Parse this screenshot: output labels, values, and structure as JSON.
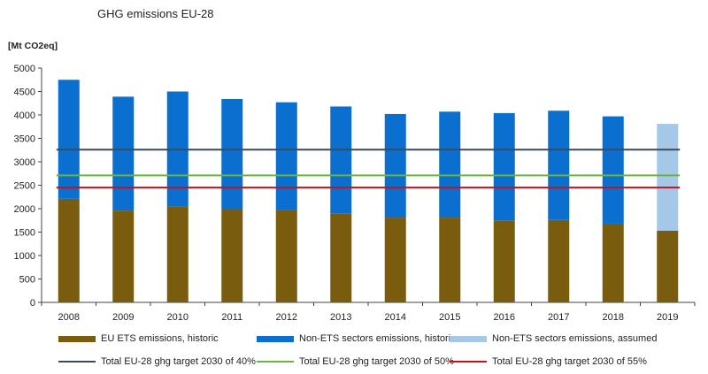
{
  "chart_data": {
    "type": "bar",
    "title": "GHG emissions EU-28",
    "ylabel": "[Mt CO2eq]",
    "xlabel": "",
    "ylim": [
      0,
      5000
    ],
    "y_ticks": [
      0,
      500,
      1000,
      1500,
      2000,
      2500,
      3000,
      3500,
      4000,
      4500,
      5000
    ],
    "categories": [
      "2008",
      "2009",
      "2010",
      "2011",
      "2012",
      "2013",
      "2014",
      "2015",
      "2016",
      "2017",
      "2018",
      "2019"
    ],
    "stacked": true,
    "grid": false,
    "legend_position": "bottom",
    "series": [
      {
        "name": "EU ETS emissions, historic",
        "color": "#7a5c0f",
        "values": [
          2210,
          1960,
          2040,
          1990,
          1970,
          1900,
          1810,
          1810,
          1750,
          1760,
          1680,
          1530
        ]
      },
      {
        "name": "Non-ETS sectors emissions, historic",
        "color": "#0a6fce",
        "values": [
          2540,
          2430,
          2460,
          2350,
          2300,
          2280,
          2210,
          2260,
          2290,
          2330,
          2290,
          null
        ]
      },
      {
        "name": "Non-ETS sectors emissions, assumed",
        "color": "#a6c8e8",
        "values": [
          null,
          null,
          null,
          null,
          null,
          null,
          null,
          null,
          null,
          null,
          null,
          2280
        ]
      }
    ],
    "reference_lines": [
      {
        "name": "Total EU-28 ghg target 2030 of 40%",
        "value": 3260,
        "color": "#3b4a5c"
      },
      {
        "name": "Total EU-28 ghg target 2030 of 50%",
        "value": 2710,
        "color": "#6db33f"
      },
      {
        "name": "Total EU-28 ghg target 2030 of 55%",
        "value": 2450,
        "color": "#c0141c"
      }
    ]
  }
}
